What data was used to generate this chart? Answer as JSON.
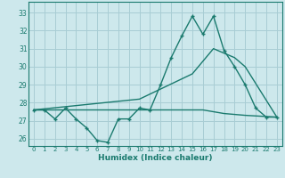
{
  "title": "",
  "xlabel": "Humidex (Indice chaleur)",
  "bg_color": "#cde8ec",
  "line_color": "#1a7a6e",
  "grid_color": "#a8cdd4",
  "xlim": [
    -0.5,
    23.5
  ],
  "ylim": [
    25.6,
    33.6
  ],
  "yticks": [
    26,
    27,
    28,
    29,
    30,
    31,
    32,
    33
  ],
  "xticks": [
    0,
    1,
    2,
    3,
    4,
    5,
    6,
    7,
    8,
    9,
    10,
    11,
    12,
    13,
    14,
    15,
    16,
    17,
    18,
    19,
    20,
    21,
    22,
    23
  ],
  "line1_x": [
    0,
    1,
    2,
    3,
    4,
    5,
    6,
    7,
    8,
    9,
    10,
    11,
    12,
    13,
    14,
    15,
    16,
    17,
    18,
    19,
    20,
    21,
    22,
    23
  ],
  "line1_y": [
    27.6,
    27.6,
    27.1,
    27.7,
    27.1,
    26.6,
    25.9,
    25.8,
    27.1,
    27.1,
    27.7,
    27.6,
    29.0,
    30.5,
    31.7,
    32.8,
    31.8,
    32.8,
    30.9,
    30.0,
    29.0,
    27.7,
    27.2,
    27.2
  ],
  "line2_x": [
    0,
    6,
    10,
    12,
    14,
    16,
    17,
    18,
    20,
    23
  ],
  "line2_y": [
    27.6,
    27.6,
    27.6,
    27.6,
    27.6,
    27.6,
    27.5,
    27.4,
    27.3,
    27.2
  ],
  "line3_x": [
    0,
    10,
    15,
    17,
    19,
    20,
    23
  ],
  "line3_y": [
    27.6,
    28.2,
    29.6,
    31.0,
    30.5,
    30.0,
    27.2
  ]
}
